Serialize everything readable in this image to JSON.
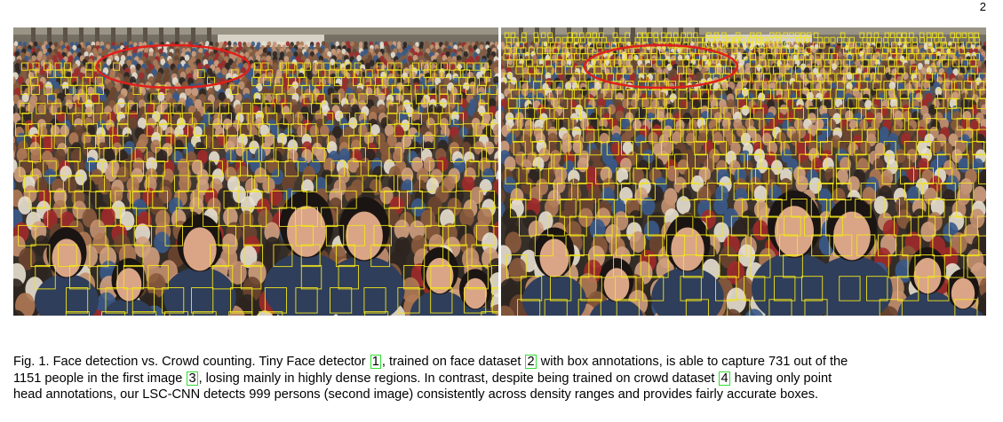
{
  "page_number": "2",
  "figure": {
    "images": [
      {
        "id": "img-left",
        "description_icon": "crowd-photo-face-boxes"
      },
      {
        "id": "img-right",
        "description_icon": "crowd-photo-head-boxes"
      }
    ],
    "colors": {
      "box": "#f3e51b",
      "ellipse": "#e0201b",
      "cite_border": "#33dd33"
    }
  },
  "caption": {
    "line1": {
      "t1": "Fig. 1. Face detection vs. Crowd counting. Tiny Face detector ",
      "c1": "1",
      "t2": ", trained on face dataset ",
      "c2": "2",
      "t3": " with box annotations, is able to capture 731 out of the"
    },
    "line2": {
      "t1": "1151 people in the first image ",
      "c1": "3",
      "t2": ", losing mainly in highly dense regions. In contrast, despite being trained on crowd dataset ",
      "c2": "4",
      "t3": " having only point"
    },
    "line3": {
      "t1": "head annotations, our LSC-CNN detects 999 persons (second image) consistently across density ranges and provides fairly accurate boxes."
    }
  }
}
